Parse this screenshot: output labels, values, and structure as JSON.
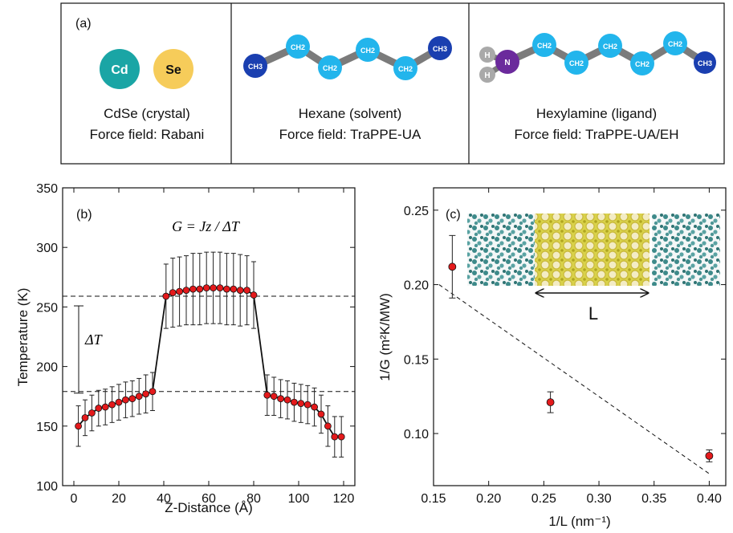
{
  "panel_a": {
    "label": "(a)",
    "items": [
      {
        "line1": "CdSe (crystal)",
        "line2": "Force field: Rabani",
        "atoms": [
          "Cd",
          "Se"
        ]
      },
      {
        "line1": "Hexane (solvent)",
        "line2": "Force field: TraPPE-UA",
        "groups": [
          "CH3",
          "CH2",
          "CH2",
          "CH2",
          "CH2",
          "CH3"
        ]
      },
      {
        "line1": "Hexylamine (ligand)",
        "line2": "Force field: TraPPE-UA/EH",
        "groups": [
          "H",
          "H",
          "N",
          "CH2",
          "CH2",
          "CH2",
          "CH2",
          "CH2",
          "CH3"
        ]
      }
    ],
    "colors": {
      "cd": "#1aa5a5",
      "se": "#f6cc5a",
      "ch2": "#22b5ec",
      "ch3": "#1a3fb0",
      "n": "#6b2a9c",
      "h": "#a9a9a9",
      "bond": "#7b7b7b"
    }
  },
  "chart_data": [
    {
      "type": "scatter",
      "panel_label": "(b)",
      "xlabel": "Z-Distance (Å)",
      "ylabel": "Temperature (K)",
      "xlim": [
        -5,
        125
      ],
      "ylim": [
        100,
        350
      ],
      "xticks": [
        0,
        20,
        40,
        60,
        80,
        100,
        120
      ],
      "yticks": [
        100,
        150,
        200,
        250,
        300,
        350
      ],
      "annotation_formula": "G = Jz / ΔT",
      "annotation_delta": "ΔT",
      "hlines": [
        259,
        179
      ],
      "grid": false,
      "connected": true,
      "marker_color": "#e41a1c",
      "points": [
        {
          "x": 2,
          "y": 150,
          "err": 17
        },
        {
          "x": 5,
          "y": 157,
          "err": 15
        },
        {
          "x": 8,
          "y": 161,
          "err": 15
        },
        {
          "x": 11,
          "y": 165,
          "err": 15
        },
        {
          "x": 14,
          "y": 166,
          "err": 15
        },
        {
          "x": 17,
          "y": 168,
          "err": 15
        },
        {
          "x": 20,
          "y": 170,
          "err": 15
        },
        {
          "x": 23,
          "y": 172,
          "err": 15
        },
        {
          "x": 26,
          "y": 173,
          "err": 15
        },
        {
          "x": 29,
          "y": 175,
          "err": 15
        },
        {
          "x": 32,
          "y": 177,
          "err": 16
        },
        {
          "x": 35,
          "y": 179,
          "err": 16
        },
        {
          "x": 41,
          "y": 259,
          "err": 27
        },
        {
          "x": 44,
          "y": 262,
          "err": 29
        },
        {
          "x": 47,
          "y": 263,
          "err": 29
        },
        {
          "x": 50,
          "y": 264,
          "err": 29
        },
        {
          "x": 53,
          "y": 265,
          "err": 30
        },
        {
          "x": 56,
          "y": 265,
          "err": 30
        },
        {
          "x": 59,
          "y": 266,
          "err": 30
        },
        {
          "x": 62,
          "y": 266,
          "err": 30
        },
        {
          "x": 65,
          "y": 266,
          "err": 30
        },
        {
          "x": 68,
          "y": 265,
          "err": 30
        },
        {
          "x": 71,
          "y": 265,
          "err": 30
        },
        {
          "x": 74,
          "y": 264,
          "err": 30
        },
        {
          "x": 77,
          "y": 264,
          "err": 29
        },
        {
          "x": 80,
          "y": 260,
          "err": 28
        },
        {
          "x": 86,
          "y": 176,
          "err": 17
        },
        {
          "x": 89,
          "y": 175,
          "err": 16
        },
        {
          "x": 92,
          "y": 173,
          "err": 16
        },
        {
          "x": 95,
          "y": 172,
          "err": 16
        },
        {
          "x": 98,
          "y": 170,
          "err": 16
        },
        {
          "x": 101,
          "y": 169,
          "err": 16
        },
        {
          "x": 104,
          "y": 168,
          "err": 16
        },
        {
          "x": 107,
          "y": 166,
          "err": 16
        },
        {
          "x": 110,
          "y": 160,
          "err": 16
        },
        {
          "x": 113,
          "y": 150,
          "err": 17
        },
        {
          "x": 116,
          "y": 141,
          "err": 17
        },
        {
          "x": 119,
          "y": 141,
          "err": 17
        }
      ]
    },
    {
      "type": "scatter",
      "panel_label": "(c)",
      "xlabel": "1/L (nm⁻¹)",
      "ylabel": "1/G (m²K/MW)",
      "xlim": [
        0.15,
        0.415
      ],
      "ylim": [
        0.065,
        0.265
      ],
      "xticks": [
        0.15,
        0.2,
        0.25,
        0.3,
        0.35,
        0.4
      ],
      "yticks": [
        0.1,
        0.15,
        0.2,
        0.25
      ],
      "xtick_labels": [
        "0.15",
        "0.20",
        "0.25",
        "0.30",
        "0.35",
        "0.40"
      ],
      "ytick_labels": [
        "0.10",
        "0.15",
        "0.20",
        "0.25"
      ],
      "grid": false,
      "marker_color": "#e41a1c",
      "points": [
        {
          "x": 0.167,
          "y": 0.212,
          "err": 0.021
        },
        {
          "x": 0.256,
          "y": 0.121,
          "err": 0.007
        },
        {
          "x": 0.4,
          "y": 0.085,
          "err": 0.004
        }
      ],
      "fit_line": {
        "x": [
          0.155,
          0.4
        ],
        "y": [
          0.2,
          0.073
        ]
      },
      "inset_label": "L"
    }
  ]
}
